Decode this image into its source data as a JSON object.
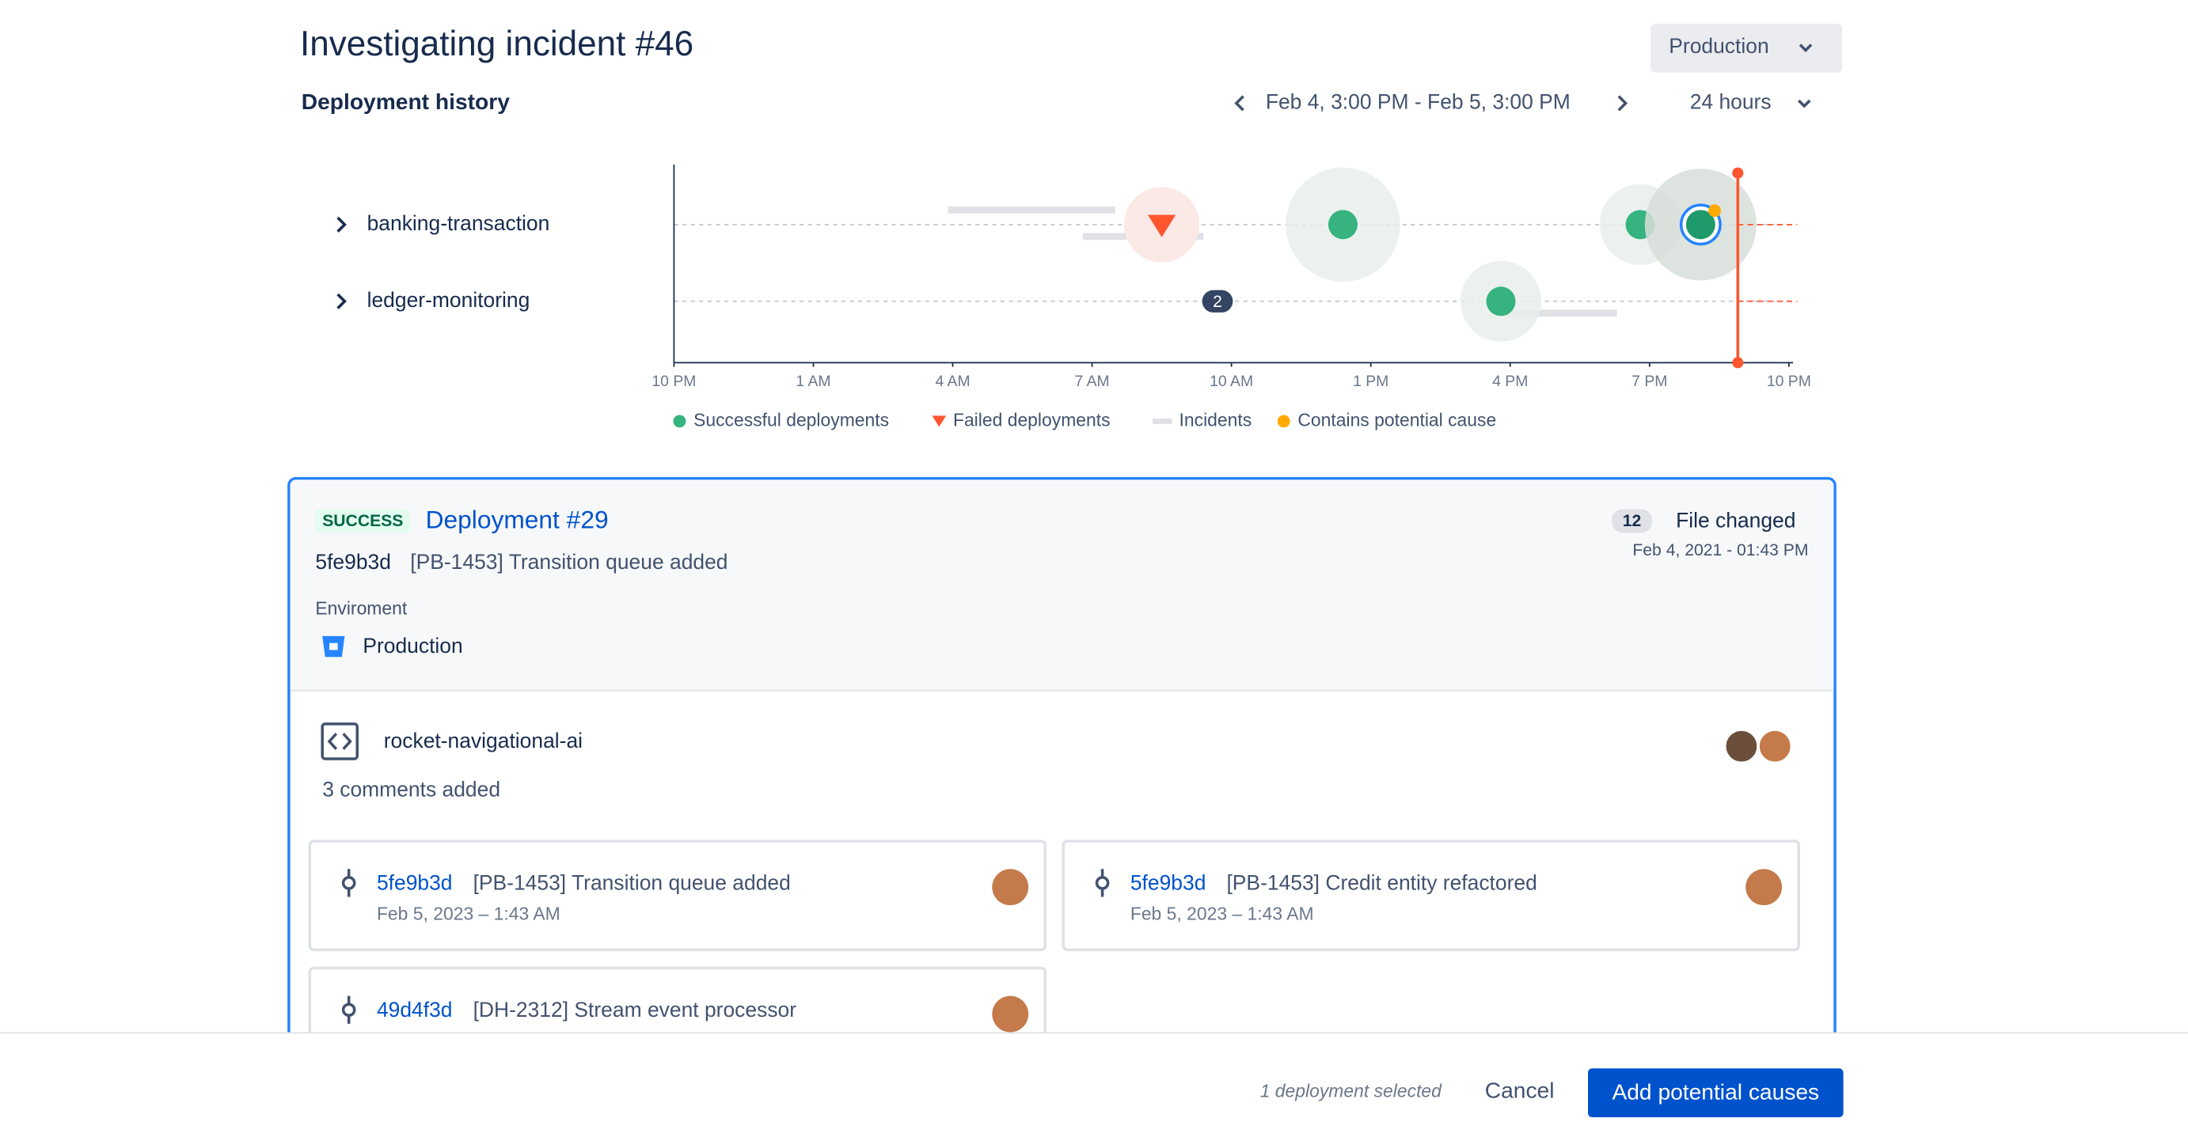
{
  "header": {
    "title": "Investigating incident #46",
    "environment_select": "Production"
  },
  "history": {
    "title": "Deployment history",
    "range": "Feb 4, 3:00 PM - Feb 5, 3:00 PM",
    "window": "24 hours"
  },
  "chart_data": {
    "type": "timeline",
    "rows": [
      "banking-transaction",
      "ledger-monitoring"
    ],
    "xlim": [
      0,
      24
    ],
    "xticks": [
      {
        "value": 0,
        "label": "10 PM"
      },
      {
        "value": 3,
        "label": "1 AM"
      },
      {
        "value": 6,
        "label": "4 AM"
      },
      {
        "value": 9,
        "label": "7 AM"
      },
      {
        "value": 12,
        "label": "10 AM"
      },
      {
        "value": 15,
        "label": "1 PM"
      },
      {
        "value": 18,
        "label": "4 PM"
      },
      {
        "value": 21,
        "label": "7 PM"
      },
      {
        "value": 24,
        "label": "10 PM"
      }
    ],
    "series": [
      {
        "name": "Successful deployments",
        "color": "#36b37e",
        "x": [
          14.4,
          20.8,
          22.1,
          17.8
        ],
        "rows": [
          "banking-transaction",
          "banking-transaction",
          "banking-transaction",
          "ledger-monitoring"
        ]
      },
      {
        "name": "Failed deployments",
        "color": "#ff5630",
        "x": [
          10.5
        ],
        "rows": [
          "banking-transaction"
        ]
      },
      {
        "name": "Incidents",
        "color": "#dfe1e6",
        "start": [
          5.9,
          8.8,
          17.8
        ],
        "end": [
          9.5,
          11.4,
          20.3
        ],
        "rows": [
          "banking-transaction",
          "banking-transaction",
          "ledger-monitoring"
        ]
      },
      {
        "name": "Contains potential cause",
        "color": "#ffab00",
        "x": [
          22.1
        ],
        "rows": [
          "banking-transaction"
        ]
      }
    ],
    "clusters": {
      "x": [
        11.7
      ],
      "rows": [
        "ledger-monitoring"
      ],
      "values": [
        2
      ]
    },
    "now": 22.9,
    "now_color": "#ff5630"
  },
  "deployment": {
    "status": "SUCCESS",
    "title": "Deployment #29",
    "commit": "5fe9b3d",
    "message": "[PB-1453] Transition queue added",
    "files_count": 12,
    "files_label": "File changed",
    "date": "Feb 4, 2021 - 01:43 PM",
    "environment_label": "Enviroment",
    "environment": "Production"
  },
  "repo": {
    "name": "rocket-navigational-ai",
    "comments": "3 comments added",
    "commits": [
      {
        "hash": "5fe9b3d",
        "message": "[PB-1453] Transition queue added",
        "date": "Feb 5, 2023 – 1:43 AM"
      },
      {
        "hash": "5fe9b3d",
        "message": "[PB-1453] Credit entity refactored",
        "date": "Feb 5, 2023 – 1:43 AM"
      },
      {
        "hash": "49d4f3d",
        "message": "[DH-2312] Stream event processor",
        "date": ""
      }
    ]
  },
  "footer": {
    "selection": "1 deployment selected",
    "cancel": "Cancel",
    "submit": "Add potential causes"
  }
}
